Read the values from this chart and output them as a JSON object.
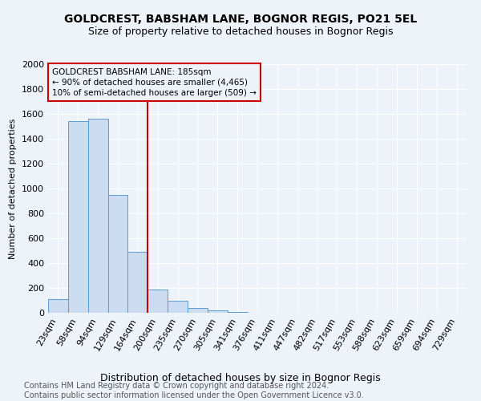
{
  "title": "GOLDCREST, BABSHAM LANE, BOGNOR REGIS, PO21 5EL",
  "subtitle": "Size of property relative to detached houses in Bognor Regis",
  "xlabel": "Distribution of detached houses by size in Bognor Regis",
  "ylabel": "Number of detached properties",
  "footer_line1": "Contains HM Land Registry data © Crown copyright and database right 2024.",
  "footer_line2": "Contains public sector information licensed under the Open Government Licence v3.0.",
  "categories": [
    "23sqm",
    "58sqm",
    "94sqm",
    "129sqm",
    "164sqm",
    "200sqm",
    "235sqm",
    "270sqm",
    "305sqm",
    "341sqm",
    "376sqm",
    "411sqm",
    "447sqm",
    "482sqm",
    "517sqm",
    "553sqm",
    "588sqm",
    "623sqm",
    "659sqm",
    "694sqm",
    "729sqm"
  ],
  "values": [
    110,
    1540,
    1560,
    950,
    490,
    185,
    95,
    40,
    20,
    5,
    0,
    0,
    0,
    0,
    0,
    0,
    0,
    0,
    0,
    0,
    0
  ],
  "bar_color": "#ccdcf0",
  "bar_edgecolor": "#5b9bd5",
  "vline_x": 4.5,
  "vline_color": "#cc0000",
  "annotation_text": "GOLDCREST BABSHAM LANE: 185sqm\n← 90% of detached houses are smaller (4,465)\n10% of semi-detached houses are larger (509) →",
  "annotation_box_color": "#cc0000",
  "ylim": [
    0,
    2000
  ],
  "yticks": [
    0,
    200,
    400,
    600,
    800,
    1000,
    1200,
    1400,
    1600,
    1800,
    2000
  ],
  "bg_color": "#eef2f9",
  "grid_color": "#ffffff",
  "title_fontsize": 10,
  "subtitle_fontsize": 9,
  "xlabel_fontsize": 9,
  "ylabel_fontsize": 8,
  "tick_fontsize": 8,
  "footer_fontsize": 7,
  "ann_fontsize": 7.5
}
